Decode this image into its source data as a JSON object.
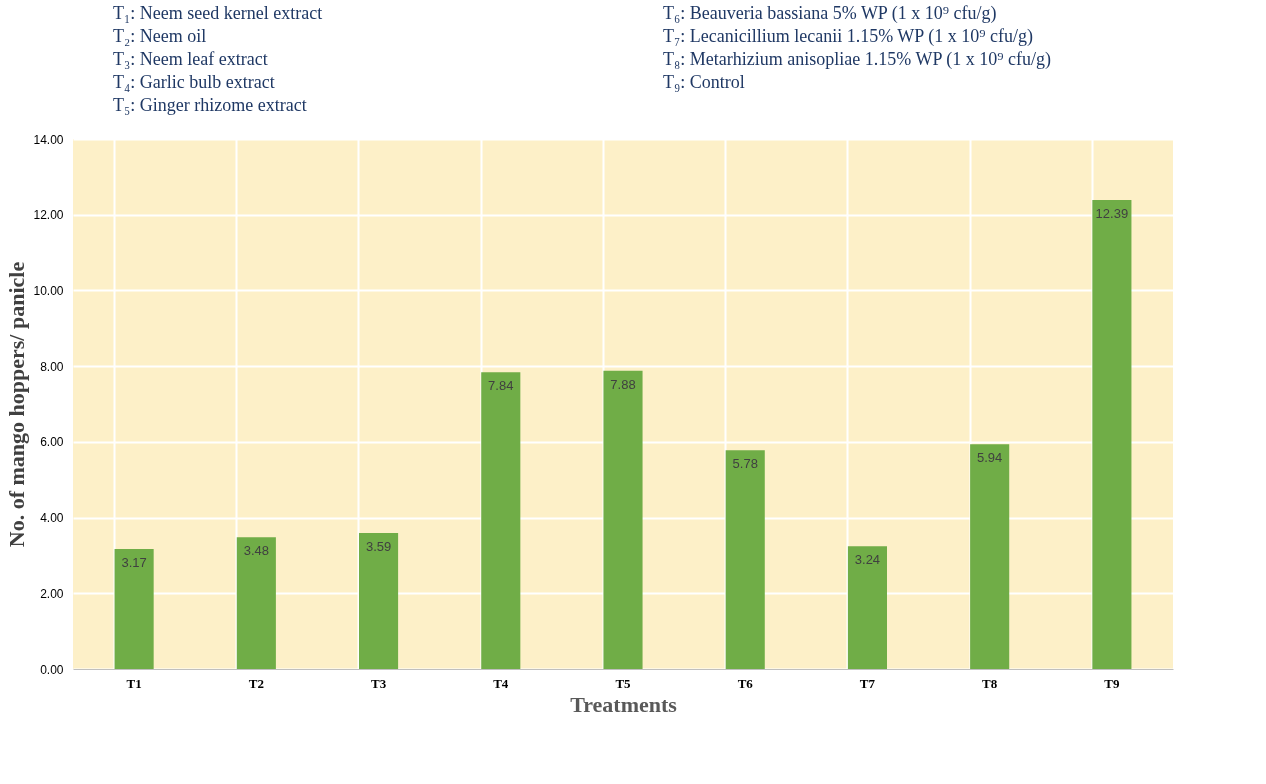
{
  "chart_data": {
    "type": "bar",
    "xlabel": "Treatments",
    "ylabel": "No. of mango hoppers/ panicle",
    "categories": [
      "T1",
      "T2",
      "T3",
      "T4",
      "T5",
      "T6",
      "T7",
      "T8",
      "T9"
    ],
    "values": [
      3.17,
      3.48,
      3.59,
      7.84,
      7.88,
      5.78,
      3.24,
      5.94,
      12.39
    ],
    "color": "#70ad47",
    "data_labels": true,
    "grid": true,
    "ylim": [
      0,
      14
    ],
    "yticks": [
      {
        "value": 0,
        "label": "0.00"
      },
      {
        "value": 2,
        "label": "2.00"
      },
      {
        "value": 4,
        "label": "4.00"
      },
      {
        "value": 6,
        "label": "6.00"
      },
      {
        "value": 8,
        "label": "8.00"
      },
      {
        "value": 10,
        "label": "10.00"
      },
      {
        "value": 12,
        "label": "12.00"
      },
      {
        "value": 14,
        "label": "14.00"
      }
    ],
    "annotations": [
      "T₁: Neem seed kernel extract",
      "T₂: Neem oil",
      "T₃: Neem leaf extract",
      "T₄: Garlic bulb extract",
      "T₅: Ginger rhizome extract",
      "T₆: Beauveria bassiana 5% WP (1 x 10⁹ cfu/g)",
      "T₇: Lecanicillium lecanii 1.15% WP (1 x 10⁹ cfu/g)",
      "T₈: Metarhizium anisopliae 1.15% WP (1 x 10⁹ cfu/g)",
      "T₉: Control"
    ]
  }
}
